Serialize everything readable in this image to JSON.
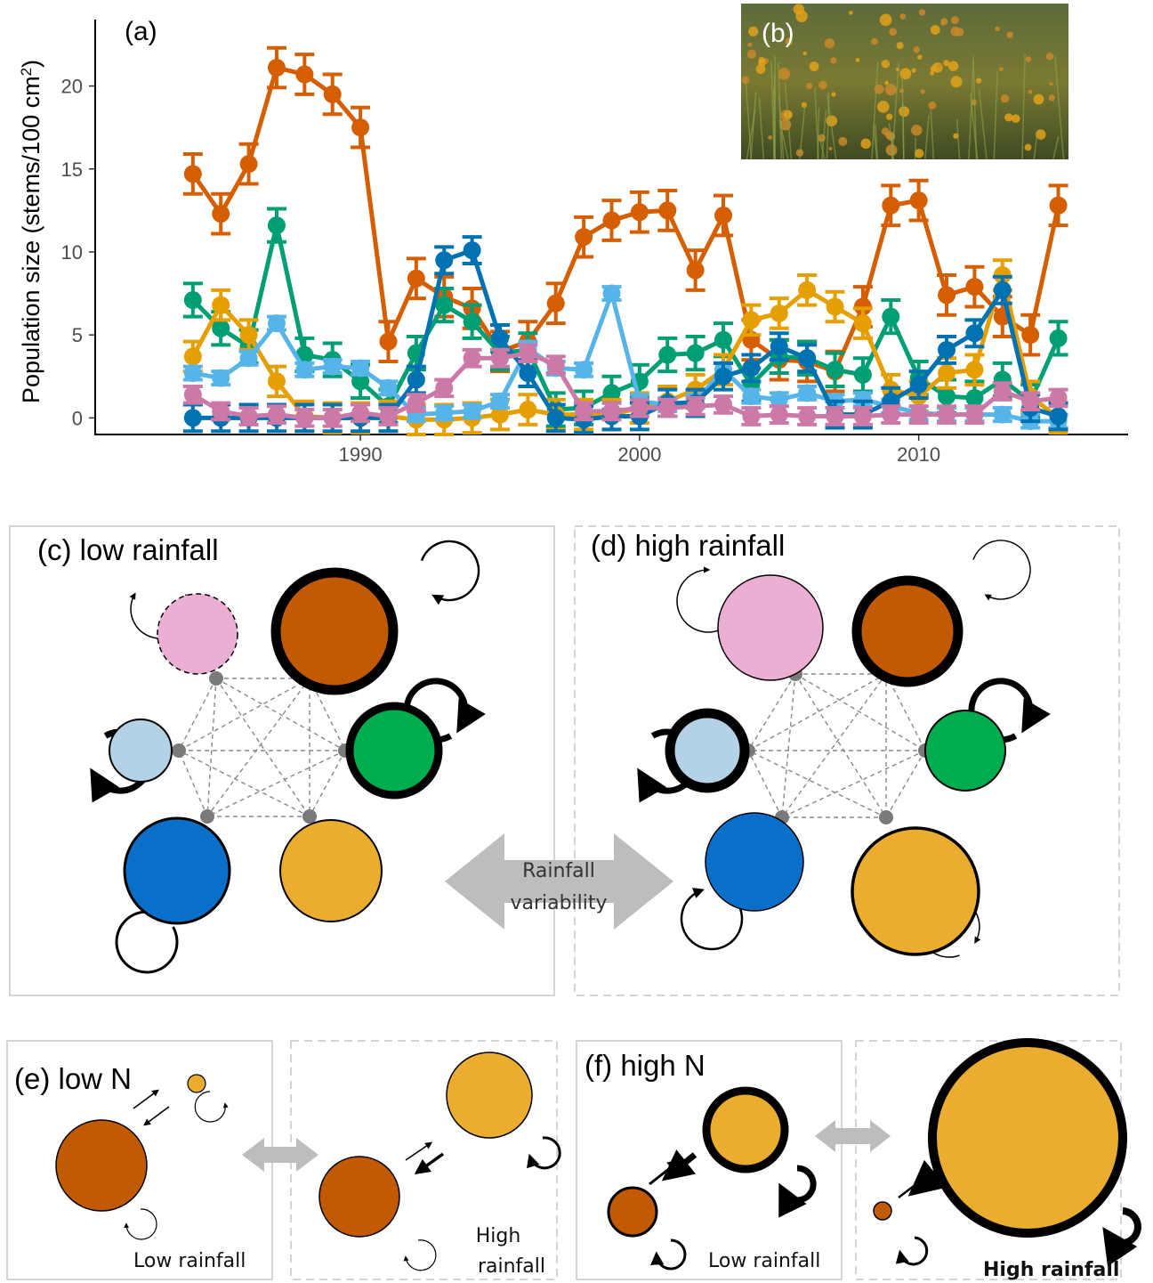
{
  "chart_data": {
    "type": "line",
    "panel_label": "(a)",
    "photo_label": "(b)",
    "ylabel": "Population size (stems/100 cm",
    "ylabel_sup": "2",
    "ylabel_close": ")",
    "xlim": [
      1980.5,
      2017.5
    ],
    "ylim": [
      -1,
      24
    ],
    "x_ticks": [
      1990,
      2000,
      2010
    ],
    "y_ticks": [
      0,
      5,
      10,
      15,
      20
    ],
    "x": [
      1984,
      1985,
      1986,
      1987,
      1988,
      1989,
      1990,
      1991,
      1992,
      1993,
      1994,
      1995,
      1996,
      1997,
      1998,
      1999,
      2000,
      2001,
      2002,
      2003,
      2004,
      2005,
      2006,
      2007,
      2008,
      2009,
      2010,
      2011,
      2012,
      2013,
      2014,
      2015
    ],
    "series": [
      {
        "color": "#D55E00",
        "err": 1.2,
        "values": [
          14.7,
          12.3,
          15.3,
          21.1,
          20.7,
          19.5,
          17.5,
          4.6,
          8.4,
          7.3,
          6.6,
          4.0,
          4.6,
          6.9,
          10.9,
          11.9,
          12.4,
          12.5,
          8.9,
          12.2,
          4.7,
          3.5,
          3.4,
          2.8,
          6.7,
          12.8,
          13.1,
          7.4,
          7.9,
          6.1,
          5.0,
          12.8
        ]
      },
      {
        "color": "#009E73",
        "err": 1.0,
        "values": [
          7.1,
          5.4,
          4.3,
          11.6,
          3.8,
          3.5,
          2.2,
          0.7,
          3.9,
          6.8,
          5.8,
          3.9,
          4.1,
          0.5,
          0.6,
          1.5,
          2.2,
          3.8,
          3.9,
          4.7,
          2.0,
          3.7,
          3.6,
          2.9,
          2.6,
          6.1,
          2.4,
          1.3,
          1.2,
          2.3,
          1.0,
          4.8
        ]
      },
      {
        "color": "#E69F00",
        "err": 0.9,
        "values": [
          3.7,
          6.8,
          5.0,
          2.2,
          0.1,
          0.0,
          0.0,
          0.1,
          -0.1,
          -0.1,
          0.0,
          0.2,
          0.5,
          0.2,
          0.2,
          0.2,
          0.6,
          1.0,
          1.7,
          2.9,
          5.9,
          6.3,
          7.7,
          6.7,
          5.7,
          1.7,
          1.3,
          2.7,
          2.9,
          8.6,
          1.3,
          0.0
        ]
      },
      {
        "color": "#56B4E9",
        "err": 0.4,
        "values": [
          2.7,
          2.4,
          3.6,
          5.7,
          2.9,
          3.1,
          3.0,
          1.8,
          0.2,
          0.3,
          0.4,
          1.0,
          4.2,
          3.0,
          2.9,
          7.5,
          1.0,
          0.8,
          1.0,
          2.9,
          1.3,
          1.1,
          1.5,
          1.0,
          1.1,
          0.7,
          0.3,
          0.2,
          0.2,
          0.2,
          -0.2,
          -0.2
        ]
      },
      {
        "color": "#0072B2",
        "err": 0.8,
        "values": [
          0.0,
          0.0,
          0.0,
          0.0,
          0.0,
          0.0,
          0.0,
          0.0,
          2.3,
          9.5,
          10.1,
          4.8,
          2.7,
          0.0,
          -0.1,
          0.1,
          0.1,
          0.9,
          0.9,
          2.5,
          3.0,
          4.3,
          3.6,
          0.2,
          0.2,
          1.0,
          2.0,
          4.1,
          5.1,
          7.7,
          0.6,
          0.1
        ]
      },
      {
        "color": "#CC79A7",
        "err": 0.5,
        "values": [
          1.4,
          0.4,
          0.1,
          0.2,
          0.0,
          0.0,
          0.3,
          0.1,
          0.9,
          1.8,
          3.6,
          3.6,
          3.9,
          3.2,
          0.4,
          0.4,
          0.6,
          0.6,
          0.7,
          0.8,
          0.1,
          0.2,
          0.1,
          0.1,
          0.1,
          0.2,
          0.2,
          0.2,
          0.2,
          1.6,
          1.0,
          1.2
        ]
      }
    ]
  },
  "diagram": {
    "panel_c_label": "(c) low rainfall",
    "panel_d_label": "(d) high rainfall",
    "rainfall_arrow_line1": "Rainfall",
    "rainfall_arrow_line2": "variability",
    "panel_e_label": "(e) low N",
    "panel_f_label": "(f) high N",
    "e_low_text": "Low rainfall",
    "e_high_text_1": "High",
    "e_high_text_2": "rainfall",
    "f_low_text": "Low rainfall",
    "f_high_text": "High rainfall",
    "colors": {
      "orange_brown": "#C25A04",
      "pink": "#EDAED4",
      "light_blue": "#B4D2E6",
      "green": "#00AD4E",
      "blue": "#0A6FC8",
      "yellow": "#EBAD2F",
      "arrow_grey": "#BDBDBD"
    }
  }
}
